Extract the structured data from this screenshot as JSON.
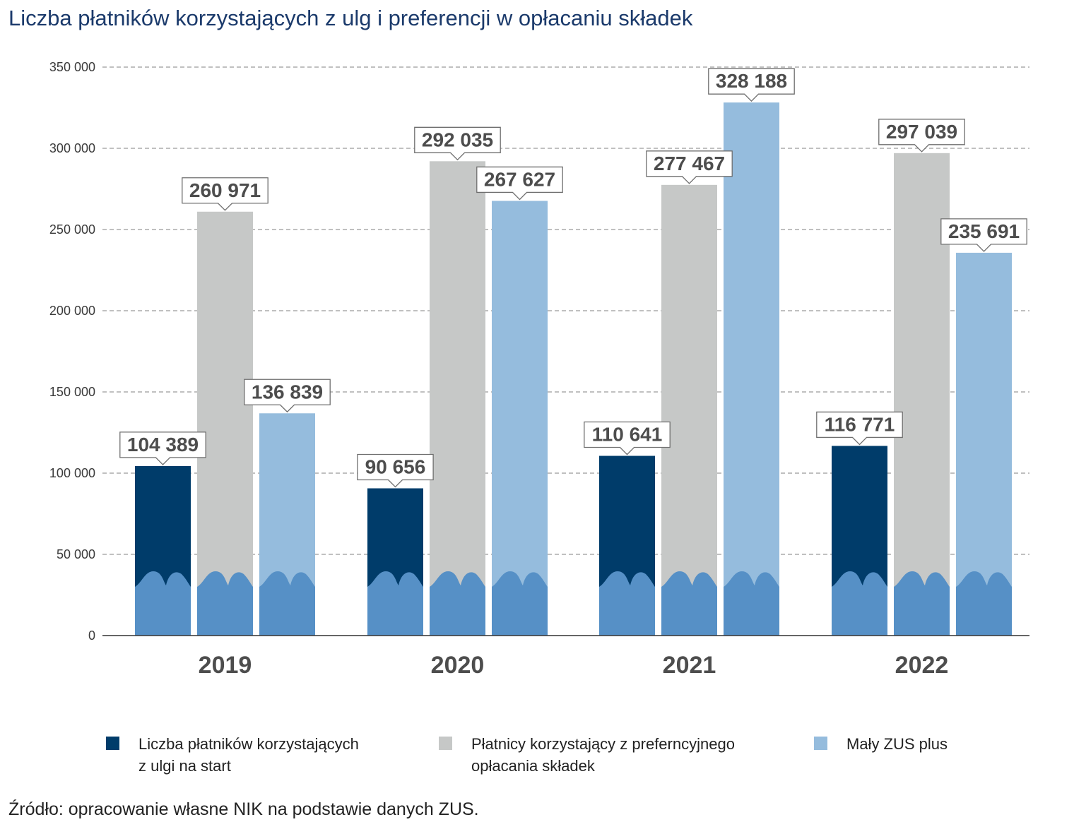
{
  "chart_data": {
    "type": "bar",
    "title": "Liczba płatników korzystających z ulg i preferencji w opłacaniu składek",
    "categories": [
      "2019",
      "2020",
      "2021",
      "2022"
    ],
    "series": [
      {
        "name": "Liczba płatników korzystających\nz ulgi na start",
        "values": [
          104389,
          90656,
          110641,
          116771
        ],
        "color": "#003c6a"
      },
      {
        "name": "Płatnicy korzystający z preferncyjnego\nopłacania składek",
        "values": [
          260971,
          292035,
          277467,
          297039
        ],
        "color": "#c6c8c7"
      },
      {
        "name": "Mały ZUS plus",
        "values": [
          136839,
          267627,
          328188,
          235691
        ],
        "color": "#95bcdd"
      }
    ],
    "data_labels": [
      [
        "104 389",
        "90 656",
        "110 641",
        "116 771"
      ],
      [
        "260 971",
        "292 035",
        "277 467",
        "297 039"
      ],
      [
        "136 839",
        "267 627",
        "328 188",
        "235 691"
      ]
    ],
    "y_ticks": [
      0,
      50000,
      100000,
      150000,
      200000,
      250000,
      300000,
      350000
    ],
    "y_tick_labels": [
      "0",
      "50 000",
      "100 000",
      "150 000",
      "200 000",
      "250 000",
      "300 000",
      "350 000"
    ],
    "ylim": [
      0,
      350000
    ],
    "grid": true,
    "legend_position": "bottom",
    "xlabel": "",
    "ylabel": "",
    "silhouette_color": "#5690c6"
  },
  "source": "Źródło: opracowanie własne NIK na podstawie danych ZUS."
}
